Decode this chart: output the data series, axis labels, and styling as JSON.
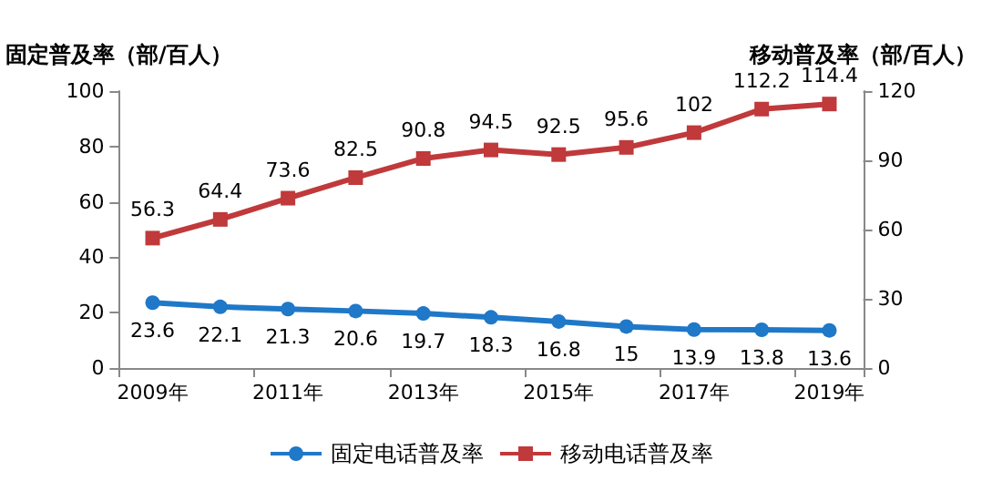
{
  "chart_data": {
    "type": "line",
    "ylabel": "固定普及率（部/百人）",
    "y2label": "移动普及率（部/百人）",
    "categories": [
      "2009年",
      null,
      "2011年",
      null,
      "2013年",
      null,
      "2015年",
      null,
      "2017年",
      null,
      "2019年"
    ],
    "series": [
      {
        "name": "固定电话普及率",
        "color": "#1f78c8",
        "marker": "circle",
        "values": [
          23.6,
          22.1,
          21.3,
          20.6,
          19.7,
          18.3,
          16.8,
          15,
          13.9,
          13.8,
          13.6
        ]
      },
      {
        "name": "移动电话普及率",
        "color": "#c0393b",
        "marker": "square",
        "axis": "y2",
        "values": [
          56.3,
          64.4,
          73.6,
          82.5,
          90.8,
          94.5,
          92.5,
          95.6,
          102,
          112.2,
          114.4
        ]
      }
    ],
    "ylim": [
      0,
      100
    ],
    "yticks": [
      0,
      20,
      40,
      60,
      80,
      100
    ],
    "y2lim": [
      0,
      120
    ],
    "y2ticks": [
      0,
      30,
      60,
      90,
      120
    ],
    "data_labels": true,
    "grid": false,
    "legend": "bottom"
  }
}
